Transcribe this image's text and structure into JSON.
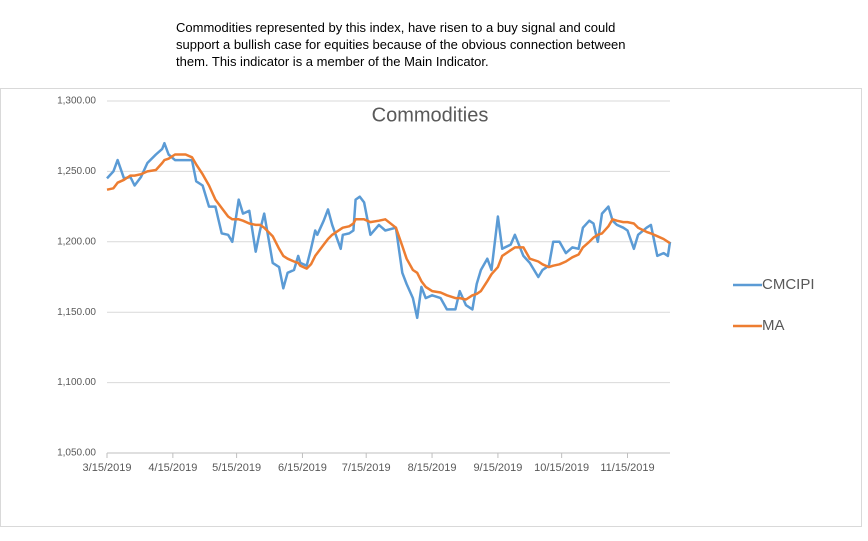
{
  "chart_data": {
    "type": "line",
    "title": "Commodities",
    "annotation": [
      "Commodities represented by this index, have risen to a buy signal and could",
      "support a bullish case for equities because of the obvious connection between",
      "them.  This indicator is a member of the Main Indicator."
    ],
    "x": [
      "2019-03-15",
      "2019-03-18",
      "2019-03-20",
      "2019-03-23",
      "2019-03-26",
      "2019-03-28",
      "2019-03-31",
      "2019-04-03",
      "2019-04-07",
      "2019-04-10",
      "2019-04-11",
      "2019-04-13",
      "2019-04-16",
      "2019-04-21",
      "2019-04-24",
      "2019-04-26",
      "2019-04-29",
      "2019-05-02",
      "2019-05-05",
      "2019-05-08",
      "2019-05-11",
      "2019-05-13",
      "2019-05-16",
      "2019-05-18",
      "2019-05-21",
      "2019-05-24",
      "2019-05-26",
      "2019-05-28",
      "2019-06-01",
      "2019-06-04",
      "2019-06-06",
      "2019-06-08",
      "2019-06-11",
      "2019-06-13",
      "2019-06-14",
      "2019-06-17",
      "2019-06-19",
      "2019-06-21",
      "2019-06-22",
      "2019-06-25",
      "2019-06-27",
      "2019-06-29",
      "2019-07-03",
      "2019-07-04",
      "2019-07-07",
      "2019-07-09",
      "2019-07-10",
      "2019-07-12",
      "2019-07-14",
      "2019-07-17",
      "2019-07-21",
      "2019-07-24",
      "2019-07-29",
      "2019-08-01",
      "2019-08-03",
      "2019-08-06",
      "2019-08-08",
      "2019-08-10",
      "2019-08-12",
      "2019-08-15",
      "2019-08-19",
      "2019-08-22",
      "2019-08-26",
      "2019-08-28",
      "2019-08-31",
      "2019-09-03",
      "2019-09-05",
      "2019-09-07",
      "2019-09-10",
      "2019-09-12",
      "2019-09-15",
      "2019-09-17",
      "2019-09-21",
      "2019-09-23",
      "2019-09-27",
      "2019-09-30",
      "2019-10-04",
      "2019-10-06",
      "2019-10-09",
      "2019-10-11",
      "2019-10-14",
      "2019-10-17",
      "2019-10-20",
      "2019-10-23",
      "2019-10-25",
      "2019-10-28",
      "2019-10-30",
      "2019-11-01",
      "2019-11-03",
      "2019-11-06",
      "2019-11-08",
      "2019-11-10",
      "2019-11-13",
      "2019-11-15",
      "2019-11-18",
      "2019-11-20",
      "2019-11-24",
      "2019-11-26",
      "2019-11-29",
      "2019-12-02",
      "2019-12-04",
      "2019-12-05"
    ],
    "series": [
      {
        "name": "CMCIPI",
        "color": "#5b9bd5",
        "values": [
          1245,
          1250,
          1258,
          1245,
          1246,
          1240,
          1246,
          1256,
          1262,
          1266,
          1270,
          1262,
          1258,
          1258,
          1258,
          1243,
          1240,
          1225,
          1225,
          1206,
          1205,
          1200,
          1230,
          1220,
          1222,
          1193,
          1208,
          1220,
          1185,
          1182,
          1167,
          1178,
          1180,
          1190,
          1185,
          1183,
          1195,
          1208,
          1205,
          1215,
          1223,
          1212,
          1195,
          1205,
          1206,
          1208,
          1230,
          1232,
          1228,
          1205,
          1212,
          1208,
          1210,
          1178,
          1170,
          1160,
          1146,
          1168,
          1160,
          1162,
          1160,
          1152,
          1152,
          1165,
          1155,
          1152,
          1170,
          1180,
          1188,
          1180,
          1218,
          1195,
          1198,
          1205,
          1190,
          1185,
          1175,
          1180,
          1183,
          1200,
          1200,
          1192,
          1196,
          1195,
          1210,
          1215,
          1213,
          1200,
          1220,
          1225,
          1215,
          1212,
          1210,
          1208,
          1195,
          1205,
          1210,
          1212,
          1190,
          1192,
          1190,
          1200
        ]
      },
      {
        "name": "MA",
        "color": "#ed7d31",
        "values": [
          1237,
          1238,
          1242,
          1244,
          1247,
          1247,
          1248,
          1250,
          1251,
          1256,
          1258,
          1259,
          1262,
          1262,
          1260,
          1255,
          1248,
          1240,
          1230,
          1224,
          1218,
          1216,
          1216,
          1215,
          1213,
          1212,
          1212,
          1210,
          1204,
          1195,
          1190,
          1188,
          1186,
          1185,
          1183,
          1181,
          1184,
          1190,
          1192,
          1198,
          1202,
          1205,
          1209,
          1210,
          1211,
          1213,
          1216,
          1216,
          1216,
          1214,
          1215,
          1216,
          1210,
          1197,
          1188,
          1180,
          1178,
          1172,
          1168,
          1165,
          1164,
          1162,
          1160,
          1160,
          1159,
          1162,
          1163,
          1165,
          1172,
          1177,
          1182,
          1190,
          1194,
          1196,
          1196,
          1188,
          1186,
          1184,
          1182,
          1183,
          1184,
          1186,
          1189,
          1191,
          1196,
          1200,
          1203,
          1205,
          1206,
          1211,
          1216,
          1215,
          1214,
          1214,
          1213,
          1210,
          1207,
          1206,
          1204,
          1202,
          1200,
          1199
        ]
      }
    ],
    "xlim": [
      "2019-03-15",
      "2019-12-05"
    ],
    "xticks": [
      {
        "value": "2019-03-15",
        "label": "3/15/2019"
      },
      {
        "value": "2019-04-15",
        "label": "4/15/2019"
      },
      {
        "value": "2019-05-15",
        "label": "5/15/2019"
      },
      {
        "value": "2019-06-15",
        "label": "6/15/2019"
      },
      {
        "value": "2019-07-15",
        "label": "7/15/2019"
      },
      {
        "value": "2019-08-15",
        "label": "8/15/2019"
      },
      {
        "value": "2019-09-15",
        "label": "9/15/2019"
      },
      {
        "value": "2019-10-15",
        "label": "10/15/2019"
      },
      {
        "value": "2019-11-15",
        "label": "11/15/2019"
      }
    ],
    "ylim": [
      1050,
      1300
    ],
    "yticks": [
      {
        "value": 1050,
        "label": "1,050.00"
      },
      {
        "value": 1100,
        "label": "1,100.00"
      },
      {
        "value": 1150,
        "label": "1,150.00"
      },
      {
        "value": 1200,
        "label": "1,200.00"
      },
      {
        "value": 1250,
        "label": "1,250.00"
      },
      {
        "value": 1300,
        "label": "1,300.00"
      }
    ],
    "grid": true,
    "legend": "right"
  }
}
